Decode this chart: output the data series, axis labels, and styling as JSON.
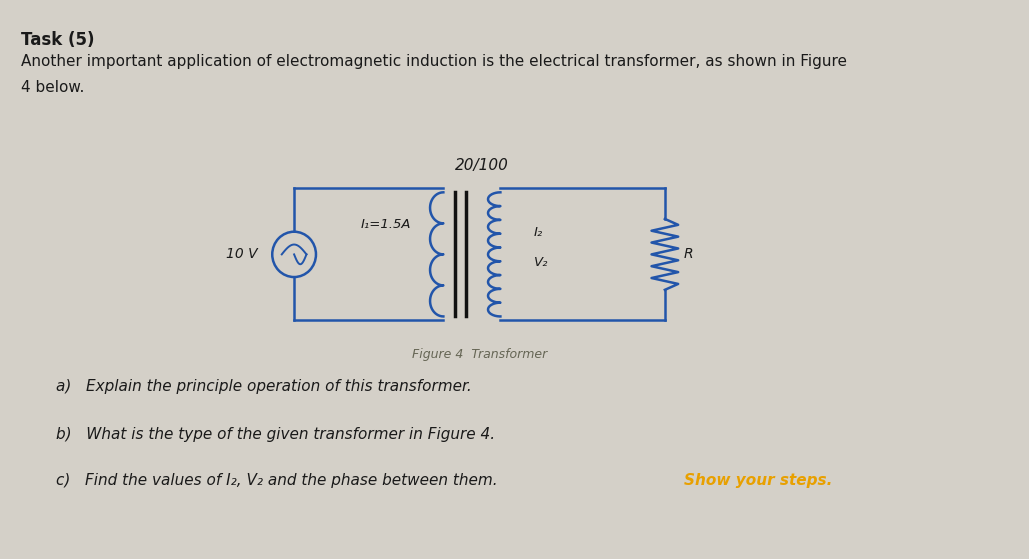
{
  "background_color": "#d4d0c8",
  "title": "Task (5)",
  "title_fontsize": 12,
  "para1_line1": "Another important application of electromagnetic induction is the electrical transformer, as shown in Figure",
  "para1_line2": "4 below.",
  "para1_fontsize": 11,
  "turns_label": "20/100",
  "turns_fontsize": 11,
  "source_label": "10 V",
  "current1_label": "I₁=1.5A",
  "i2_label": "I₂",
  "v2_label": "V₂",
  "r_label": "R",
  "figure_caption": "Figure 4  Transformer",
  "figure_caption_fontsize": 9,
  "qa": "a)   Explain the principle operation of this transformer.",
  "qb": "b)   What is the type of the given transformer in Figure 4.",
  "qc_plain": "c)   Find the values of I₂, V₂ and the phase between them.  ",
  "qc_highlight": "Show your steps.",
  "qa_fontsize": 11,
  "highlight_color": "#e8a000",
  "circuit_color": "#2255aa",
  "text_color": "#1a1a1a",
  "fig_width": 10.29,
  "fig_height": 5.59
}
